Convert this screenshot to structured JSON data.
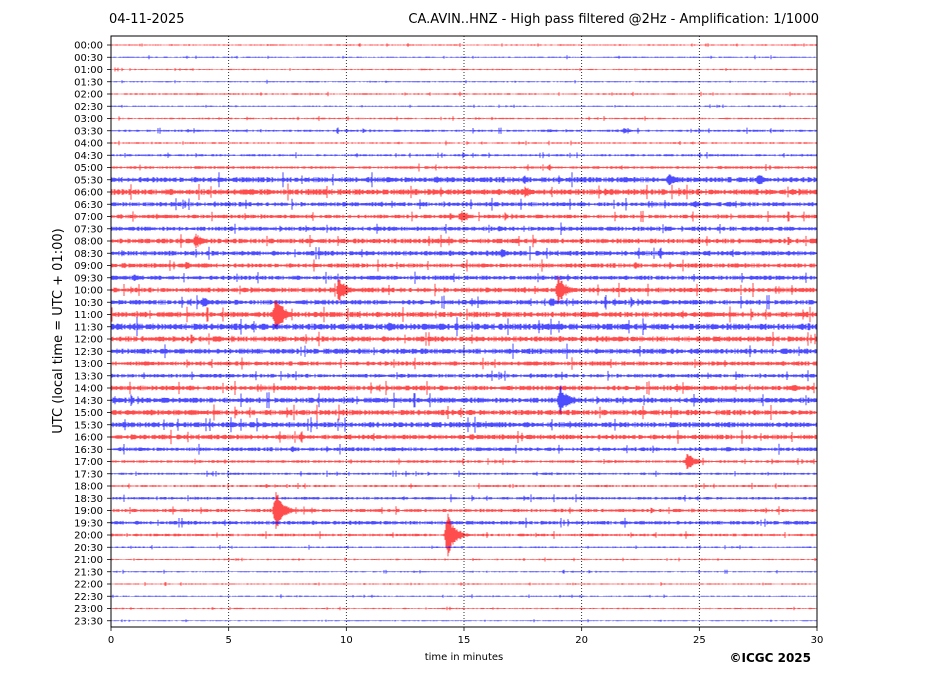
{
  "header": {
    "date": "04-11-2025",
    "title": "CA.AVIN..HNZ - High pass filtered @2Hz - Amplification: 1/1000"
  },
  "credit": "©ICGC 2025",
  "chart_data": {
    "type": "line",
    "title": "CA.AVIN..HNZ - High pass filtered @2Hz - Amplification: 1/1000",
    "xlabel": "time in minutes",
    "ylabel": "UTC (local time = UTC + 01:00)",
    "xlim": [
      0,
      30
    ],
    "x_ticks": [
      "0",
      "5",
      "10",
      "15",
      "20",
      "25",
      "30"
    ],
    "x_grid": [
      5,
      10,
      15,
      20,
      25
    ],
    "rows": [
      "00:00",
      "00:30",
      "01:00",
      "01:30",
      "02:00",
      "02:30",
      "03:00",
      "03:30",
      "04:00",
      "04:30",
      "05:00",
      "05:30",
      "06:00",
      "06:30",
      "07:00",
      "07:30",
      "08:00",
      "08:30",
      "09:00",
      "09:30",
      "10:00",
      "10:30",
      "11:00",
      "11:30",
      "12:00",
      "12:30",
      "13:00",
      "13:30",
      "14:00",
      "14:30",
      "15:00",
      "15:30",
      "16:00",
      "16:30",
      "17:00",
      "17:30",
      "18:00",
      "18:30",
      "19:00",
      "19:30",
      "20:00",
      "20:30",
      "21:00",
      "21:30",
      "22:00",
      "22:30",
      "23:00",
      "23:30"
    ],
    "colors": [
      "#ff0000",
      "#0000ff"
    ],
    "noise": [
      0.5,
      0.5,
      0.5,
      0.5,
      0.6,
      0.5,
      0.6,
      0.8,
      0.6,
      0.8,
      1.0,
      2.0,
      2.2,
      1.6,
      1.4,
      1.6,
      1.8,
      1.8,
      1.6,
      1.6,
      1.8,
      1.8,
      2.0,
      2.4,
      2.0,
      2.0,
      1.6,
      1.4,
      1.8,
      2.0,
      2.0,
      2.0,
      1.8,
      1.4,
      1.0,
      0.8,
      0.8,
      1.0,
      1.2,
      1.4,
      1.0,
      0.6,
      0.5,
      0.5,
      0.5,
      0.5,
      0.5,
      0.4
    ],
    "events": [
      {
        "row": 7,
        "minute": 21.8,
        "amp": 3
      },
      {
        "row": 7,
        "minute": 18.6,
        "amp": 2
      },
      {
        "row": 11,
        "minute": 23.7,
        "amp": 8
      },
      {
        "row": 11,
        "minute": 27.5,
        "amp": 7
      },
      {
        "row": 11,
        "minute": 13.8,
        "amp": 4
      },
      {
        "row": 12,
        "minute": 17.6,
        "amp": 6
      },
      {
        "row": 12,
        "minute": 21.0,
        "amp": 4
      },
      {
        "row": 13,
        "minute": 24.8,
        "amp": 4
      },
      {
        "row": 14,
        "minute": 14.9,
        "amp": 6
      },
      {
        "row": 15,
        "minute": 16.5,
        "amp": 3
      },
      {
        "row": 16,
        "minute": 3.6,
        "amp": 8
      },
      {
        "row": 16,
        "minute": 11.2,
        "amp": 3
      },
      {
        "row": 17,
        "minute": 16.6,
        "amp": 5
      },
      {
        "row": 18,
        "minute": 3.2,
        "amp": 4
      },
      {
        "row": 19,
        "minute": 1.0,
        "amp": 4
      },
      {
        "row": 20,
        "minute": 9.7,
        "amp": 14
      },
      {
        "row": 20,
        "minute": 19.0,
        "amp": 16
      },
      {
        "row": 21,
        "minute": 3.9,
        "amp": 6
      },
      {
        "row": 21,
        "minute": 18.7,
        "amp": 5
      },
      {
        "row": 22,
        "minute": 7.0,
        "amp": 22
      },
      {
        "row": 23,
        "minute": 11.8,
        "amp": 5
      },
      {
        "row": 23,
        "minute": 14.0,
        "amp": 5
      },
      {
        "row": 23,
        "minute": 0.3,
        "amp": 4
      },
      {
        "row": 29,
        "minute": 19.1,
        "amp": 16
      },
      {
        "row": 30,
        "minute": 1.6,
        "amp": 3
      },
      {
        "row": 33,
        "minute": 26.2,
        "amp": 3
      },
      {
        "row": 34,
        "minute": 24.5,
        "amp": 9
      },
      {
        "row": 38,
        "minute": 7.0,
        "amp": 22
      },
      {
        "row": 40,
        "minute": 14.3,
        "amp": 24
      },
      {
        "row": 28,
        "minute": 29.0,
        "amp": 4
      },
      {
        "row": 32,
        "minute": 0.9,
        "amp": 3
      }
    ]
  }
}
